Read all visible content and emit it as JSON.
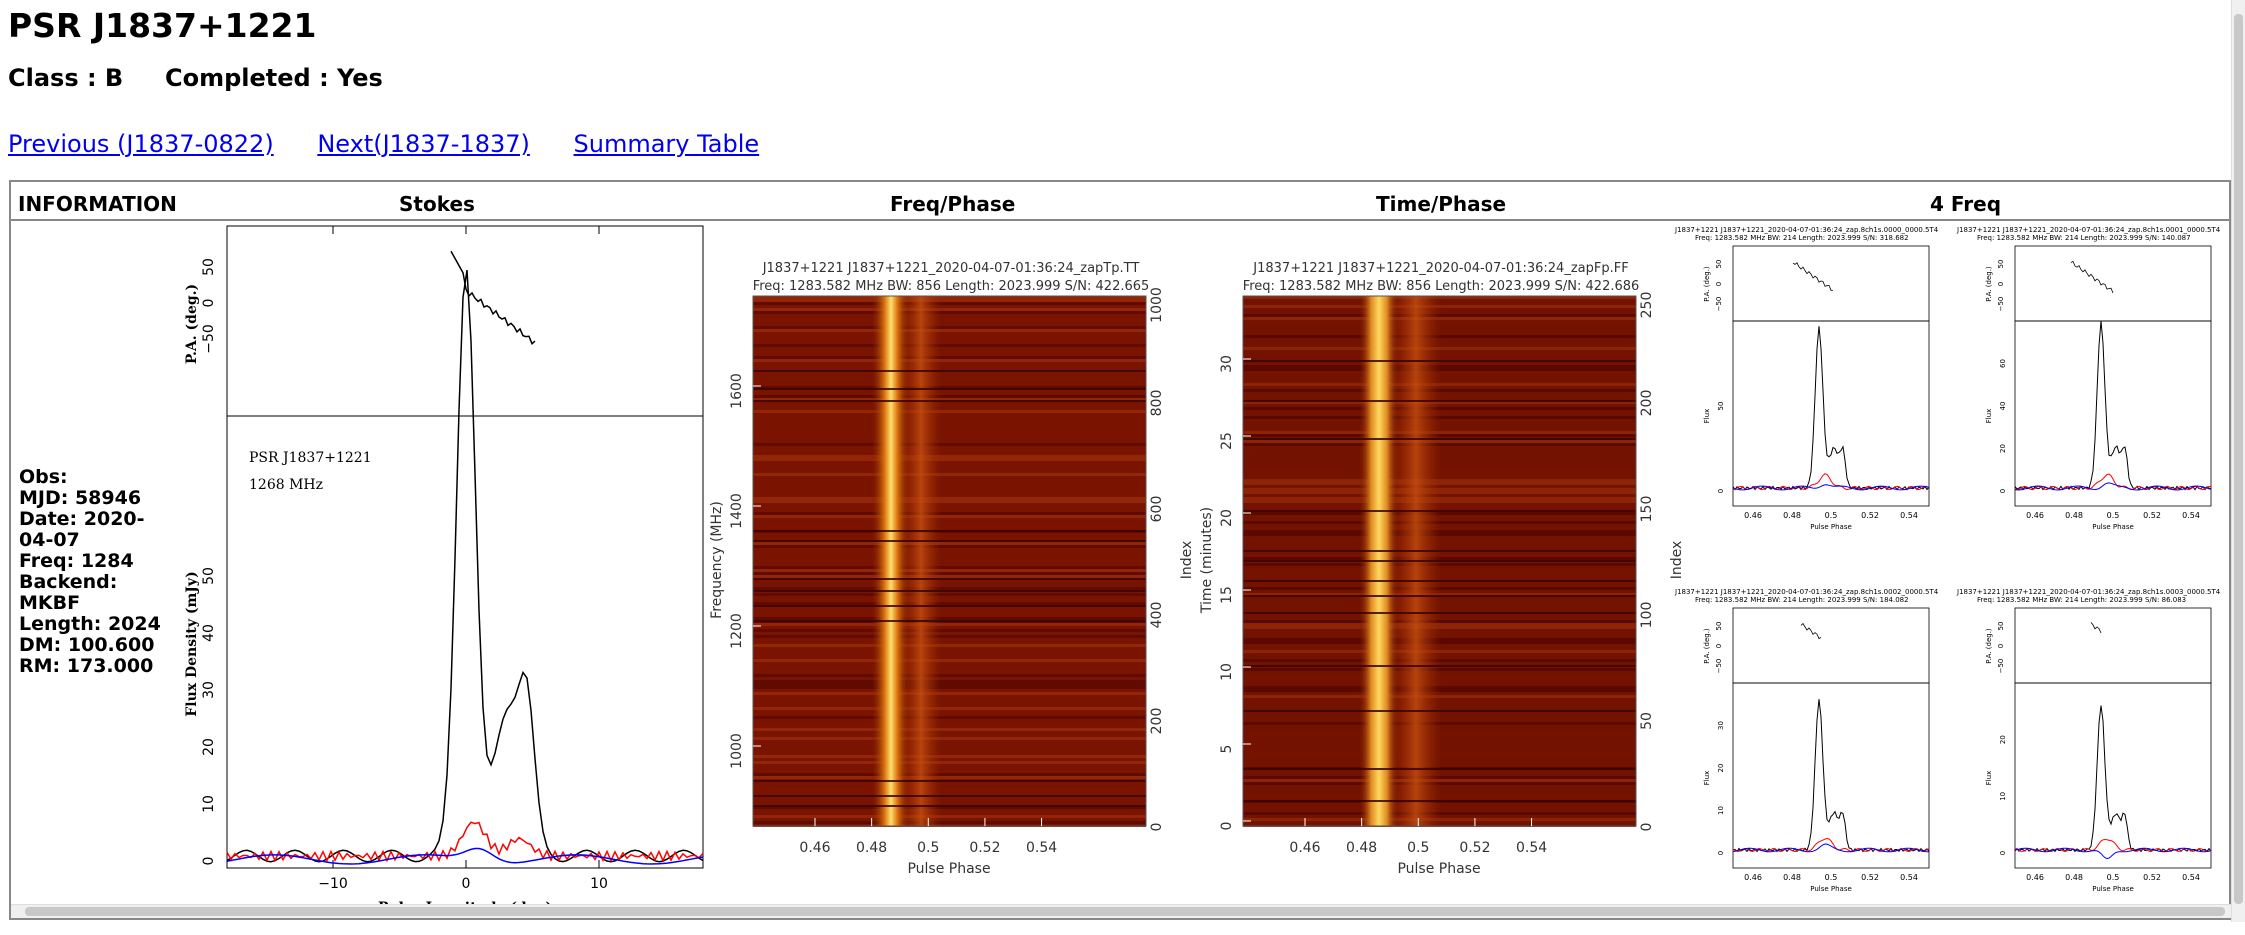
{
  "page": {
    "title": "PSR J1837+1221",
    "subtitle": "Class : B     Completed : Yes",
    "nav": {
      "previous": "Previous (J1837-0822)",
      "next": "Next(J1837-1837)",
      "summary": "Summary Table"
    }
  },
  "table": {
    "headers": [
      "INFORMATION",
      "Stokes",
      "Freq/Phase",
      "Time/Phase",
      "4 Freq"
    ]
  },
  "info": {
    "obs": "Obs:",
    "mjd": "MJD: 58946",
    "date": "Date: 2020-04-07",
    "freq": "Freq: 1284",
    "backend": "Backend: MKBF",
    "length": "Length: 2024",
    "dm": "DM: 100.600",
    "rm": "RM: 173.000"
  },
  "stokes": {
    "label1": "PSR J1837+1221",
    "label2": "1268 MHz",
    "pa_ylabel": "P.A. (deg.)",
    "flux_ylabel": "Flux Density (mJy)",
    "xlabel": "Pulse Longitude (deg)",
    "pa_ticks": [
      "50",
      "0",
      "−50"
    ],
    "flux_ticks": [
      "0",
      "10",
      "20",
      "30",
      "40",
      "50"
    ],
    "x_ticks": [
      "−10",
      "0",
      "10"
    ]
  },
  "freqphase": {
    "title1": "J1837+1221  J1837+1221_2020-04-07-01:36:24_zapTp.TT",
    "title2": "Freq: 1283.582 MHz  BW: 856  Length: 2023.999  S/N: 422.665",
    "ylabel": "Frequency (MHz)",
    "rlabel": "Index",
    "xlabel": "Pulse Phase",
    "y_ticks": [
      "1000",
      "1200",
      "1400",
      "1600"
    ],
    "r_ticks": [
      "0",
      "200",
      "400",
      "600",
      "800",
      "1000"
    ],
    "x_ticks": [
      "0.46",
      "0.48",
      "0.5",
      "0.52",
      "0.54"
    ]
  },
  "timephase": {
    "title1": "J1837+1221  J1837+1221_2020-04-07-01:36:24_zapFp.FF",
    "title2": "Freq: 1283.582 MHz  BW: 856  Length: 2023.999  S/N: 422.686",
    "ylabel": "Time (minutes)",
    "rlabel": "Index",
    "xlabel": "Pulse Phase",
    "y_ticks": [
      "0",
      "5",
      "10",
      "15",
      "20",
      "25",
      "30"
    ],
    "r_ticks": [
      "0",
      "50",
      "100",
      "150",
      "200",
      "250"
    ],
    "x_ticks": [
      "0.46",
      "0.48",
      "0.5",
      "0.52",
      "0.54"
    ]
  },
  "fourfreq": {
    "panels": [
      {
        "title1": "J1837+1221  J1837+1221_2020-04-07-01:36:24_zap.8ch1s.0000_0000.5T4",
        "title2": "Freq: 1283.582 MHz  BW: 214  Length: 2023.999  S/N: 318.682"
      },
      {
        "title1": "J1837+1221  J1837+1221_2020-04-07-01:36:24_zap.8ch1s.0001_0000.5T4",
        "title2": "Freq: 1283.582 MHz  BW: 214  Length: 2023.999  S/N: 140.087"
      },
      {
        "title1": "J1837+1221  J1837+1221_2020-04-07-01:36:24_zap.8ch1s.0002_0000.5T4",
        "title2": "Freq: 1283.582 MHz  BW: 214  Length: 2023.999  S/N: 184.082"
      },
      {
        "title1": "J1837+1221  J1837+1221_2020-04-07-01:36:24_zap.8ch1s.0003_0000.5T4",
        "title2": "Freq: 1283.582 MHz  BW: 214  Length: 2023.999  S/N: 86.083"
      }
    ],
    "pa_label": "P.A. (deg.)",
    "flux_label": "Flux",
    "xlabel": "Pulse Phase",
    "x_ticks": [
      "0.46",
      "0.48",
      "0.5",
      "0.52",
      "0.54"
    ],
    "pa_ticks": [
      "50",
      "0",
      "−50"
    ],
    "flux_ticks_by_panel": [
      [
        "0",
        "50"
      ],
      [
        "0",
        "20",
        "40",
        "60"
      ],
      [
        "0",
        "10",
        "20",
        "30"
      ],
      [
        "0",
        "10",
        "20"
      ]
    ]
  },
  "colors": {
    "link": "#0000ee",
    "linear": "#ff0000",
    "circular": "#0000ff",
    "total": "#000000",
    "waterfall_bg": "#7a1400",
    "waterfall_peak": "#ffe070"
  }
}
